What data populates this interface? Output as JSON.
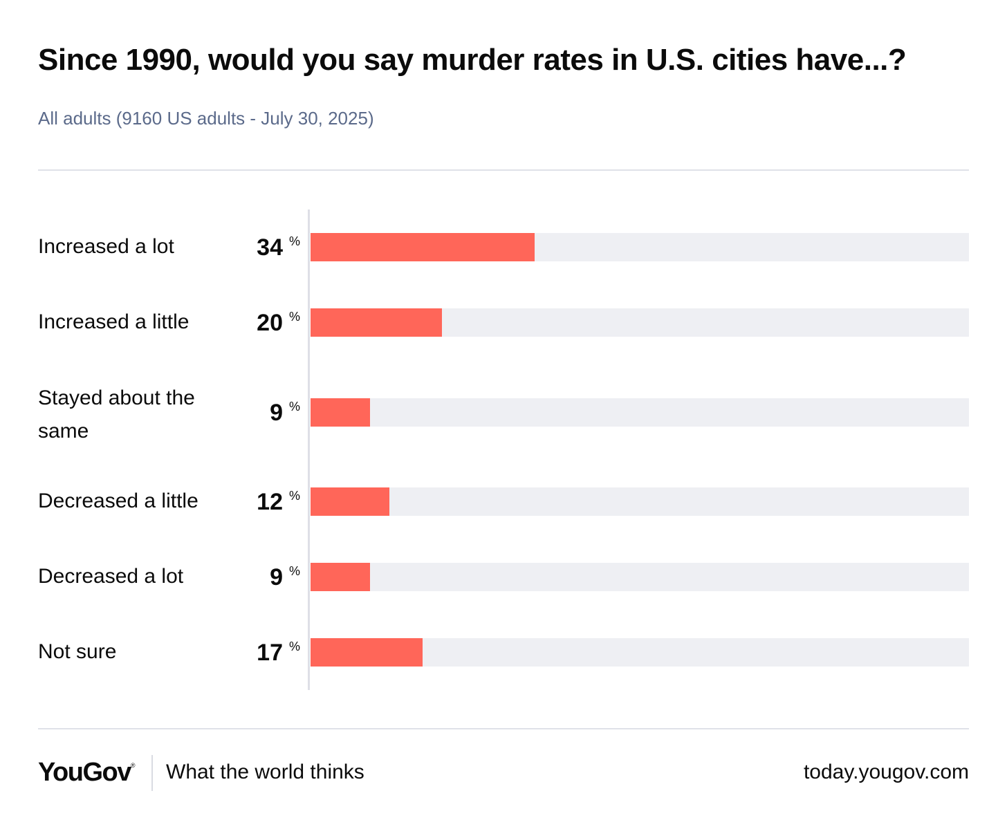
{
  "chart_data": {
    "type": "bar",
    "orientation": "horizontal",
    "title": "Since 1990, would you say murder rates in U.S. cities have...?",
    "subtitle": "All adults (9160 US adults - July 30, 2025)",
    "unit": "%",
    "xlim": [
      0,
      100
    ],
    "categories": [
      "Increased a lot",
      "Increased a little",
      "Stayed about the same",
      "Decreased a little",
      "Decreased a lot",
      "Not sure"
    ],
    "values": [
      34,
      20,
      9,
      12,
      9,
      17
    ],
    "bar_color": "#ff6659",
    "track_color": "#eeeff3"
  },
  "footer": {
    "logo": "YouGov",
    "logo_mark": "®",
    "tagline": "What the world thinks",
    "url": "today.yougov.com"
  }
}
